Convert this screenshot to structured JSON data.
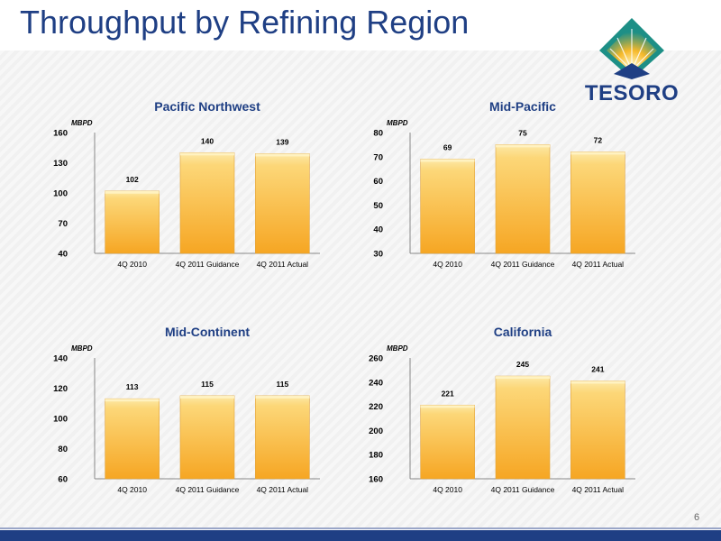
{
  "page": {
    "title": "Throughput by Refining Region",
    "page_number": "6",
    "logo_text": "TESORO",
    "colors": {
      "title": "#1f3f84",
      "bar_top": "#fde9a8",
      "bar_bottom": "#f6a623",
      "footer": "#1f3f84"
    }
  },
  "chart_data": [
    {
      "type": "bar",
      "title": "Pacific Northwest",
      "unit": "MBPD",
      "categories": [
        "4Q 2010",
        "4Q 2011 Guidance",
        "4Q 2011 Actual"
      ],
      "values": [
        102,
        140,
        139
      ],
      "value_labels": [
        "102",
        "140",
        "139"
      ],
      "ylim": [
        40,
        160
      ],
      "yticks": [
        "40",
        "70",
        "100",
        "130",
        "160"
      ]
    },
    {
      "type": "bar",
      "title": "Mid-Pacific",
      "unit": "MBPD",
      "categories": [
        "4Q 2010",
        "4Q 2011 Guidance",
        "4Q 2011 Actual"
      ],
      "values": [
        69,
        75,
        72
      ],
      "value_labels": [
        "69",
        "75",
        "72"
      ],
      "ylim": [
        30,
        80
      ],
      "yticks": [
        "30",
        "40",
        "50",
        "60",
        "70",
        "80"
      ]
    },
    {
      "type": "bar",
      "title": "Mid-Continent",
      "unit": "MBPD",
      "categories": [
        "4Q 2010",
        "4Q 2011 Guidance",
        "4Q 2011 Actual"
      ],
      "values": [
        113,
        115,
        115
      ],
      "value_labels": [
        "113",
        "115",
        "115"
      ],
      "ylim": [
        60,
        140
      ],
      "yticks": [
        "60",
        "80",
        "100",
        "120",
        "140"
      ]
    },
    {
      "type": "bar",
      "title": "California",
      "unit": "MBPD",
      "categories": [
        "4Q 2010",
        "4Q 2011 Guidance",
        "4Q 2011 Actual"
      ],
      "values": [
        221,
        245,
        241
      ],
      "value_labels": [
        "221",
        "245",
        "241"
      ],
      "ylim": [
        160,
        260
      ],
      "yticks": [
        "160",
        "180",
        "200",
        "220",
        "240",
        "260"
      ]
    }
  ]
}
